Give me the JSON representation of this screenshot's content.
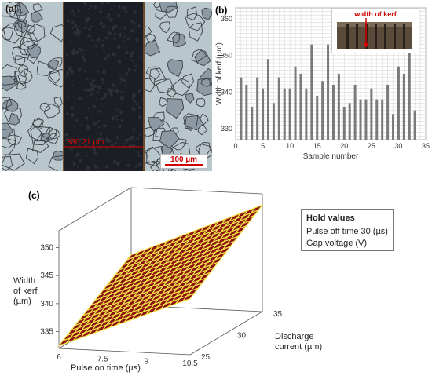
{
  "panel_a": {
    "letter": "(a)",
    "measurement": "330.21 µm",
    "scale_label": "100 µm"
  },
  "panel_b": {
    "letter": "(b)",
    "inset_label": "width of kerf"
  },
  "panel_c": {
    "letter": "(c)",
    "hold_title": "Hold values",
    "hold_lines": [
      "Pulse off time 30 (µs)",
      "Gap voltage (V)"
    ],
    "zlabel_lines": [
      "Width",
      "of kerf",
      "(µm)"
    ],
    "xlabel": "Pulse on time (µs)",
    "ylabel_lines": [
      "Discharge",
      "current (µm)"
    ]
  },
  "colors": {
    "bar": "#7a7a7a",
    "surface_fill": "#8b1010",
    "surface_grid": "#f2e34a",
    "measure_red": "#e00000"
  },
  "chart_data": [
    {
      "type": "bar",
      "xlabel": "Sample number",
      "ylabel": "Width of kerf (µm)",
      "xlim": [
        0,
        35
      ],
      "ylim": [
        327,
        363
      ],
      "xticks": [
        0,
        5,
        10,
        15,
        20,
        25,
        30,
        35
      ],
      "yticks": [
        330,
        340,
        350,
        360
      ],
      "grid": true,
      "x": [
        1,
        2,
        3,
        4,
        5,
        6,
        7,
        8,
        9,
        10,
        11,
        12,
        13,
        14,
        15,
        16,
        17,
        18,
        19,
        20,
        21,
        22,
        23,
        24,
        25,
        26,
        27,
        28,
        29,
        30,
        31,
        32,
        33
      ],
      "values": [
        344,
        342,
        336,
        344,
        341,
        349,
        337,
        344,
        341,
        341,
        347,
        345,
        341,
        353,
        339,
        343,
        353,
        342,
        345,
        336,
        337,
        342,
        338,
        338,
        341,
        338,
        338,
        342,
        334,
        347,
        345,
        353,
        335
      ]
    },
    {
      "type": "surface",
      "xlabel": "Pulse on time (µs)",
      "ylabel": "Discharge current (µm)",
      "zlabel": "Width of kerf (µm)",
      "xlim": [
        6,
        10.5
      ],
      "ylim": [
        25,
        35
      ],
      "zlim": [
        332,
        353
      ],
      "xticks": [
        6,
        7.5,
        9,
        10.5
      ],
      "yticks": [
        25,
        30,
        35
      ],
      "zticks": [
        335,
        340,
        345,
        350
      ],
      "grid_size": 18,
      "corner_z": {
        "x6_y25": 332.5,
        "x10.5_y25": 342,
        "x6_y35": 341,
        "x10.5_y35": 351
      }
    }
  ]
}
